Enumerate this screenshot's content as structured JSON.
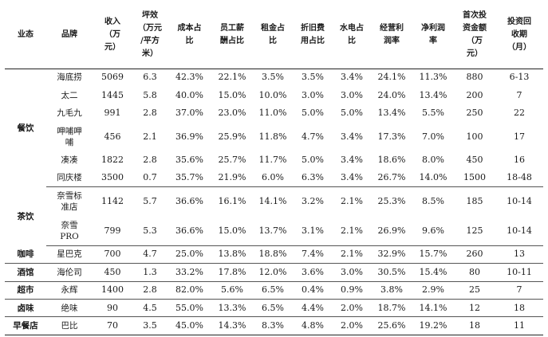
{
  "headers": [
    "业态",
    "品牌",
    "收入\n（万\n元）",
    "坪效\n（万元\n/平方\n米）",
    "成本占\n比",
    "员工薪\n酬占比",
    "租金占\n比",
    "折旧费\n用占比",
    "水电占\n比",
    "经营利\n润率",
    "净利润\n率",
    "首次投\n资金额\n（万\n元）",
    "投资回\n收期\n（月）"
  ],
  "groups": [
    {
      "category": "餐饮",
      "rows": [
        {
          "brand": "海底捞",
          "cells": [
            "5069",
            "6.3",
            "42.3%",
            "22.1%",
            "3.5%",
            "3.5%",
            "3.4%",
            "24.1%",
            "11.3%",
            "880",
            "6-13"
          ]
        },
        {
          "brand": "太二",
          "cells": [
            "1445",
            "5.8",
            "40.0%",
            "15.0%",
            "10.0%",
            "3.0%",
            "3.0%",
            "24.0%",
            "13.4%",
            "200",
            "7"
          ]
        },
        {
          "brand": "九毛九",
          "cells": [
            "991",
            "2.8",
            "37.0%",
            "23.0%",
            "11.0%",
            "5.0%",
            "5.0%",
            "13.4%",
            "5.5%",
            "250",
            "22"
          ]
        },
        {
          "brand": "呷哺呷\n哺",
          "cells": [
            "456",
            "2.1",
            "36.9%",
            "25.9%",
            "11.8%",
            "4.7%",
            "3.4%",
            "17.3%",
            "7.0%",
            "100",
            "17"
          ]
        },
        {
          "brand": "凑凑",
          "cells": [
            "1822",
            "2.8",
            "35.6%",
            "25.7%",
            "11.7%",
            "5.0%",
            "3.4%",
            "18.6%",
            "8.0%",
            "450",
            "16"
          ]
        },
        {
          "brand": "同庆楼",
          "cells": [
            "3500",
            "0.7",
            "35.7%",
            "21.9%",
            "6.0%",
            "6.3%",
            "3.4%",
            "26.7%",
            "14.0%",
            "1500",
            "18-48"
          ]
        }
      ]
    },
    {
      "category": "茶饮",
      "rows": [
        {
          "brand": "奈雪标\n准店",
          "cells": [
            "1142",
            "5.7",
            "36.6%",
            "16.1%",
            "14.1%",
            "3.2%",
            "2.1%",
            "25.3%",
            "8.5%",
            "185",
            "10-14"
          ]
        },
        {
          "brand": "奈雪\nPRO",
          "cells": [
            "799",
            "5.3",
            "36.6%",
            "15.0%",
            "13.7%",
            "3.1%",
            "2.1%",
            "26.9%",
            "9.6%",
            "125",
            "10-14"
          ]
        }
      ]
    },
    {
      "category": "咖啡",
      "rows": [
        {
          "brand": "星巴克",
          "cells": [
            "700",
            "4.7",
            "25.0%",
            "13.8%",
            "18.8%",
            "7.4%",
            "2.1%",
            "32.9%",
            "15.7%",
            "260",
            "13"
          ]
        }
      ]
    },
    {
      "category": "酒馆",
      "rows": [
        {
          "brand": "海伦司",
          "cells": [
            "450",
            "1.3",
            "33.2%",
            "17.8%",
            "12.0%",
            "3.6%",
            "3.0%",
            "30.5%",
            "15.4%",
            "80",
            "10-11"
          ]
        }
      ]
    },
    {
      "category": "超市",
      "rows": [
        {
          "brand": "永辉",
          "cells": [
            "1400",
            "2.8",
            "82.0%",
            "5.6%",
            "6.5%",
            "0.4%",
            "0.9%",
            "3.8%",
            "2.9%",
            "25",
            "7"
          ]
        }
      ]
    },
    {
      "category": "卤味",
      "rows": [
        {
          "brand": "绝味",
          "cells": [
            "90",
            "4.5",
            "55.0%",
            "13.3%",
            "6.5%",
            "4.4%",
            "2.0%",
            "18.7%",
            "14.1%",
            "12",
            "18"
          ]
        }
      ]
    },
    {
      "category": "早餐店",
      "rows": [
        {
          "brand": "巴比",
          "cells": [
            "70",
            "3.5",
            "45.0%",
            "14.3%",
            "8.3%",
            "4.8%",
            "2.0%",
            "25.6%",
            "19.2%",
            "18",
            "11"
          ]
        }
      ]
    }
  ]
}
